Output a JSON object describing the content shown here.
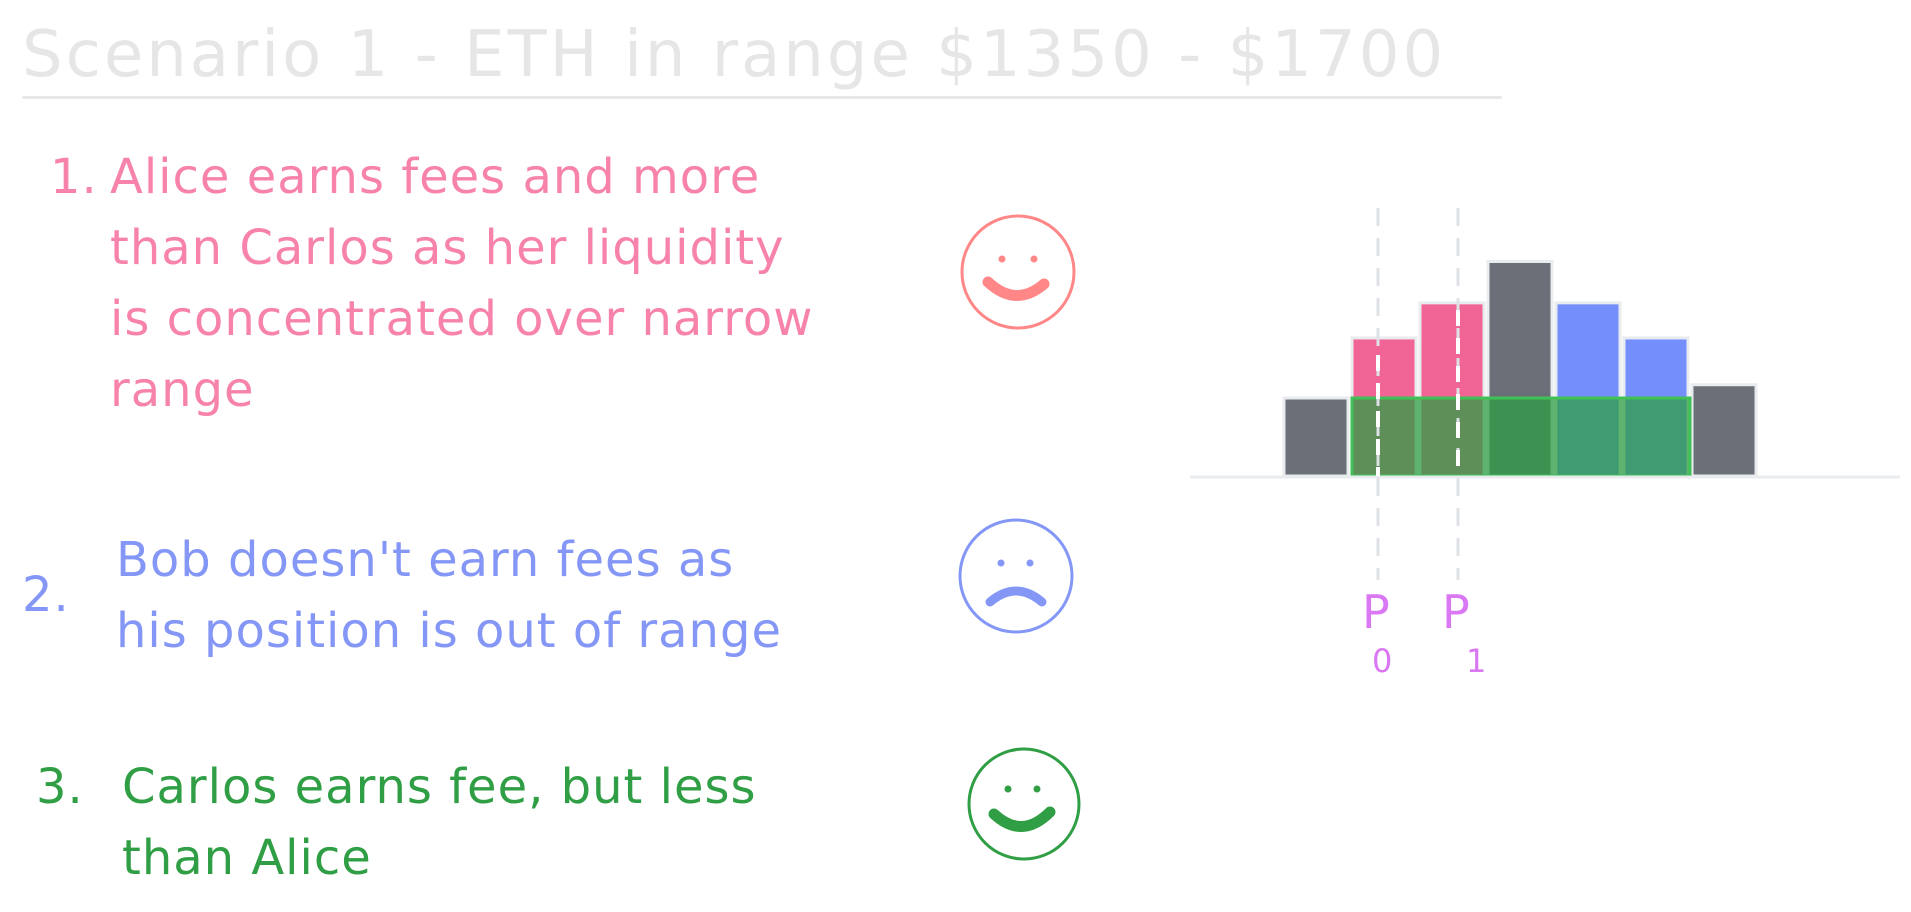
{
  "title": "Scenario 1 - ETH in range $1350 - $1700",
  "items": [
    {
      "number": "1.",
      "lines": [
        "Alice earns fees and more",
        "than Carlos as her liquidity",
        "is concentrated over narrow",
        "range"
      ],
      "mood": "happy",
      "color": "#f783ac"
    },
    {
      "number": "2.",
      "lines": [
        "Bob doesn't earn fees as",
        "his position is out of range"
      ],
      "mood": "sad",
      "color": "#8597f6"
    },
    {
      "number": "3.",
      "lines": [
        "Carlos earns fee, but less",
        "than Alice"
      ],
      "mood": "happy",
      "color": "#2f9e44"
    }
  ],
  "diagram": {
    "price_labels": [
      {
        "main": "P",
        "sub": "0"
      },
      {
        "main": "P",
        "sub": "1"
      }
    ],
    "bars": [
      {
        "color": "#6b7078",
        "base": 1.0,
        "top": 0
      },
      {
        "color": "#f06595",
        "base": 1.0,
        "top": 0.77
      },
      {
        "color": "#f06595",
        "base": 1.0,
        "top": 1.22
      },
      {
        "color": "#6b7078",
        "base": 1.0,
        "top": 1.75
      },
      {
        "color": "#748ffc",
        "base": 1.0,
        "top": 1.22
      },
      {
        "color": "#748ffc",
        "base": 1.0,
        "top": 0.77
      },
      {
        "color": "#6b7078",
        "base": 1.17,
        "top": 0
      }
    ],
    "colors": {
      "gray": "#6b7078",
      "pink": "#f06595",
      "blue": "#748ffc",
      "green_overlay": "#2f9e44",
      "price_label": "#da77f2"
    }
  }
}
